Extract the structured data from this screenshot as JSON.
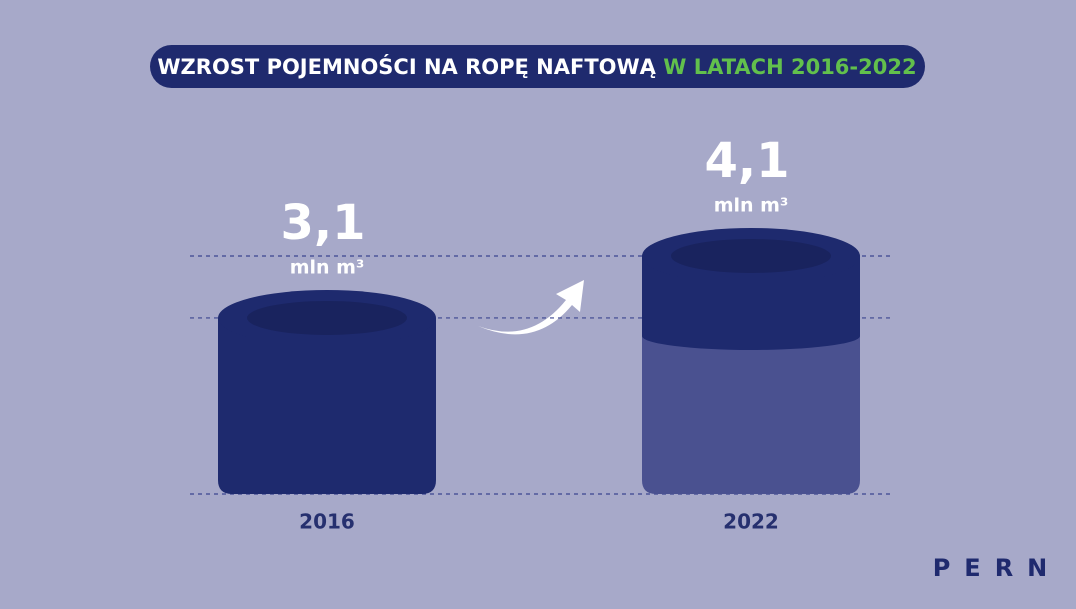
{
  "chart_data": {
    "type": "cylinder-bar",
    "title": "WZROST POJEMNOŚCI NA ROPĘ NAFTOWĄ",
    "title_highlight": "W LATACH 2016-2022",
    "categories": [
      "2016",
      "2022"
    ],
    "values": [
      3.1,
      4.1
    ],
    "value_labels": [
      "3,1",
      "4,1"
    ],
    "unit": "mln m³",
    "color": "#1e2a6e",
    "logo": "PERN"
  }
}
